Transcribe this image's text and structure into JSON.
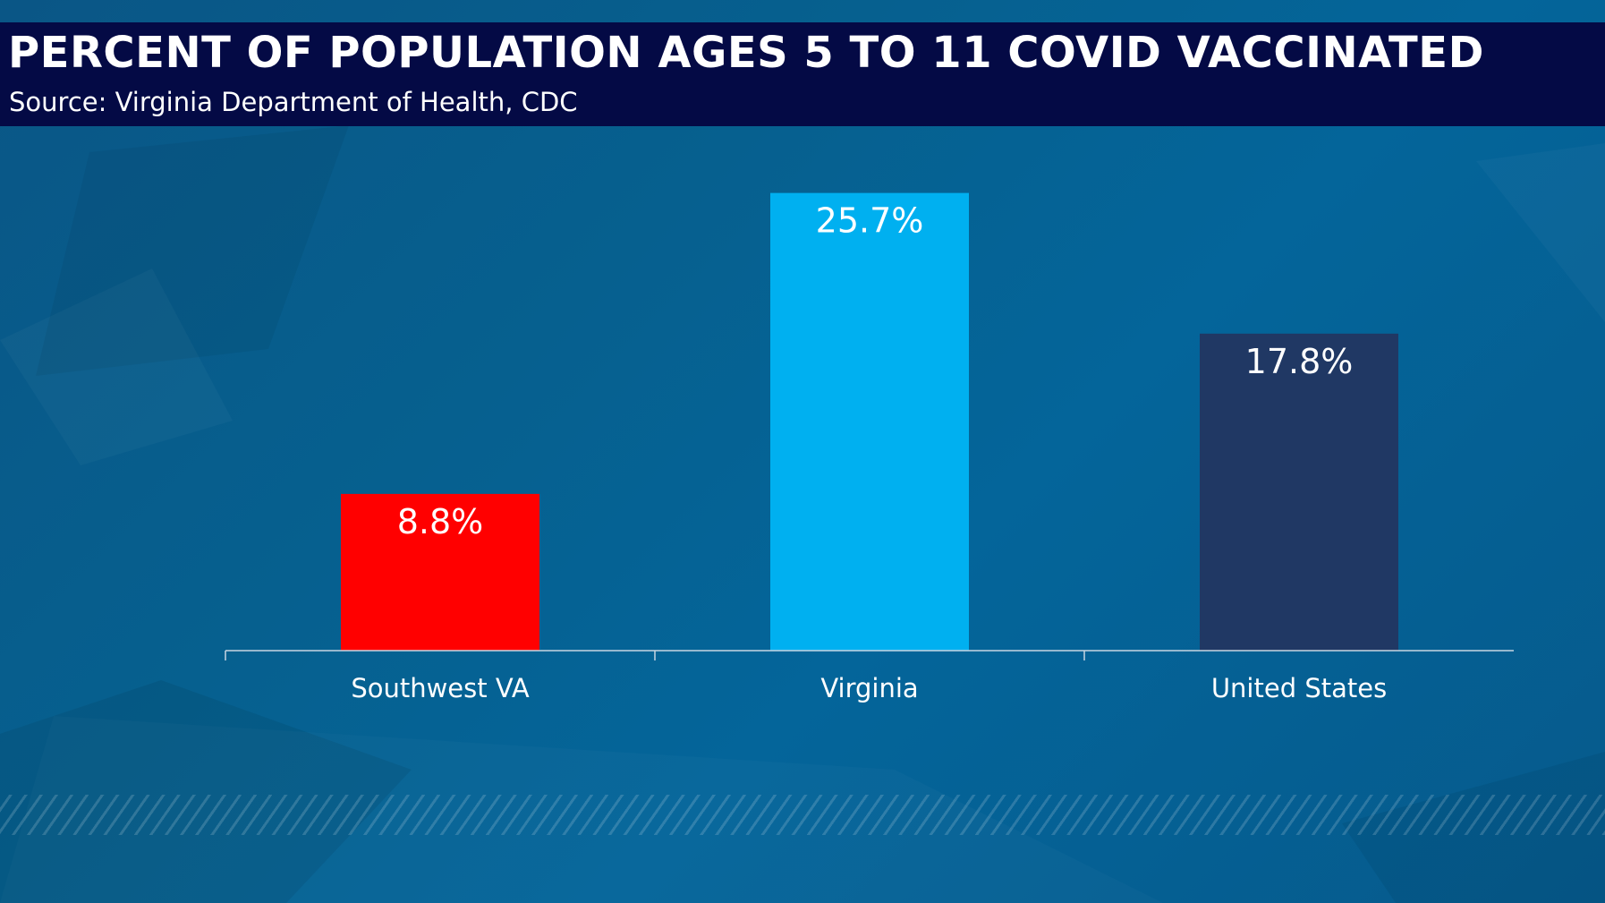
{
  "header": {
    "title": "PERCENT OF POPULATION AGES 5 TO 11 COVID VACCINATED",
    "subtitle": "Source: Virginia Department of Health, CDC"
  },
  "colors": {
    "header_bg": "#040a45",
    "bar_southwest": "#ff0000",
    "bar_virginia": "#00b0f0",
    "bar_us": "#203864",
    "axis": "#c8d6e2",
    "text": "#ffffff"
  },
  "chart_data": {
    "type": "bar",
    "title": "PERCENT OF POPULATION AGES 5 TO 11 COVID VACCINATED",
    "xlabel": "",
    "ylabel": "",
    "ylim": [
      0,
      29.5
    ],
    "grid": false,
    "categories": [
      "Southwest VA",
      "Virginia",
      "United States"
    ],
    "values": [
      8.8,
      25.7,
      17.8
    ],
    "data_labels": [
      "8.8%",
      "25.7%",
      "17.8%"
    ],
    "bar_colors": [
      "#ff0000",
      "#00b0f0",
      "#203864"
    ]
  }
}
